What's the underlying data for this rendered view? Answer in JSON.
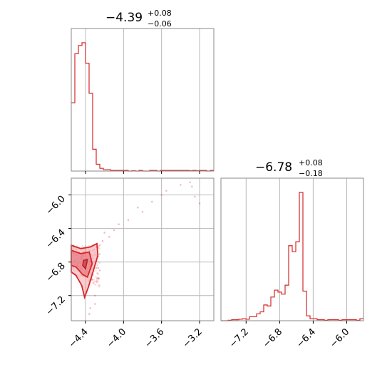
{
  "chart_data": [
    {
      "type": "histogram",
      "panel": "marginal-param-1",
      "title": {
        "median": "−4.39",
        "plus": "+0.08",
        "minus": "−0.06"
      },
      "xlim": [
        -4.55,
        -3.05
      ],
      "xticks": [
        -4.4,
        -4.0,
        -3.6,
        -3.2
      ],
      "grid": true,
      "bin_edges_start": -4.55,
      "bin_width": 0.0375,
      "counts": [
        50,
        86,
        92,
        94,
        79,
        57,
        16,
        5,
        2,
        1,
        1,
        0.5,
        0.5,
        0.5,
        0.5,
        0.5,
        0,
        0.3,
        0,
        0.5,
        0,
        0,
        0.5,
        0.5,
        0,
        0.5,
        0.5,
        0.5,
        0.5,
        0.5,
        0.5,
        0.5,
        0.5,
        0.3,
        0.5,
        0.3,
        0.5,
        0.5,
        0,
        0.5
      ],
      "color": "#d62728"
    },
    {
      "type": "scatter-density",
      "panel": "joint",
      "xlim": [
        -4.55,
        -3.05
      ],
      "ylim": [
        -7.5,
        -5.8
      ],
      "xticks": [
        "−4.4",
        "−4.0",
        "−3.6",
        "−3.2"
      ],
      "xtick_values": [
        -4.4,
        -4.0,
        -3.6,
        -3.2
      ],
      "yticks": [
        "−6.0",
        "−6.4",
        "−6.8",
        "−7.2"
      ],
      "ytick_values": [
        -6.0,
        -6.4,
        -6.8,
        -7.2
      ],
      "grid": true,
      "color": "#d62728",
      "contour_outer": [
        [
          -4.55,
          -6.6
        ],
        [
          -4.45,
          -6.64
        ],
        [
          -4.35,
          -6.62
        ],
        [
          -4.28,
          -6.58
        ],
        [
          -4.27,
          -6.72
        ],
        [
          -4.33,
          -6.95
        ],
        [
          -4.37,
          -7.1
        ],
        [
          -4.41,
          -7.22
        ],
        [
          -4.44,
          -7.08
        ],
        [
          -4.5,
          -6.96
        ],
        [
          -4.55,
          -6.92
        ]
      ],
      "contour_inner": [
        [
          -4.55,
          -6.66
        ],
        [
          -4.45,
          -6.7
        ],
        [
          -4.36,
          -6.68
        ],
        [
          -4.33,
          -6.82
        ],
        [
          -4.38,
          -6.98
        ],
        [
          -4.43,
          -6.95
        ],
        [
          -4.5,
          -6.86
        ],
        [
          -4.55,
          -6.84
        ]
      ],
      "contour_core": [
        [
          -4.42,
          -6.78
        ],
        [
          -4.38,
          -6.77
        ],
        [
          -4.4,
          -6.88
        ],
        [
          -4.43,
          -6.84
        ]
      ],
      "outliers": [
        [
          -3.3,
          -5.85
        ],
        [
          -3.4,
          -5.88
        ],
        [
          -3.28,
          -5.9
        ],
        [
          -3.55,
          -5.95
        ],
        [
          -3.6,
          -6.0
        ],
        [
          -3.25,
          -6.02
        ],
        [
          -3.7,
          -6.08
        ],
        [
          -3.85,
          -6.15
        ],
        [
          -3.2,
          -6.1
        ],
        [
          -3.8,
          -6.2
        ],
        [
          -3.95,
          -6.3
        ],
        [
          -4.05,
          -6.35
        ],
        [
          -4.1,
          -6.42
        ],
        [
          -4.2,
          -6.45
        ],
        [
          -4.15,
          -6.5
        ],
        [
          -4.22,
          -6.55
        ],
        [
          -4.25,
          -6.6
        ],
        [
          -4.3,
          -7.3
        ],
        [
          -4.35,
          -7.35
        ],
        [
          -4.36,
          -7.42
        ],
        [
          -4.3,
          -7.2
        ],
        [
          -4.26,
          -7.0
        ],
        [
          -4.25,
          -6.9
        ]
      ]
    },
    {
      "type": "histogram",
      "panel": "marginal-param-2",
      "title": {
        "median": "−6.78",
        "plus": "+0.08",
        "minus": "−0.18"
      },
      "xlim": [
        -7.5,
        -5.8
      ],
      "xticks": [
        "−7.2",
        "−6.8",
        "−6.4",
        "−6.0"
      ],
      "xtick_values": [
        -7.2,
        -6.8,
        -6.4,
        -6.0
      ],
      "grid": true,
      "bin_edges_start": -7.5,
      "bin_width": 0.0425,
      "counts": [
        0,
        0,
        0.5,
        1,
        1,
        1.5,
        2,
        1.5,
        4,
        4,
        7,
        9,
        16,
        15,
        24,
        31,
        29,
        27,
        36,
        76,
        70,
        80,
        130,
        30,
        5,
        2,
        2,
        1,
        1,
        0.5,
        1,
        1,
        1,
        0.5,
        1,
        1,
        1,
        1,
        0.5,
        2
      ],
      "color": "#d62728"
    }
  ]
}
